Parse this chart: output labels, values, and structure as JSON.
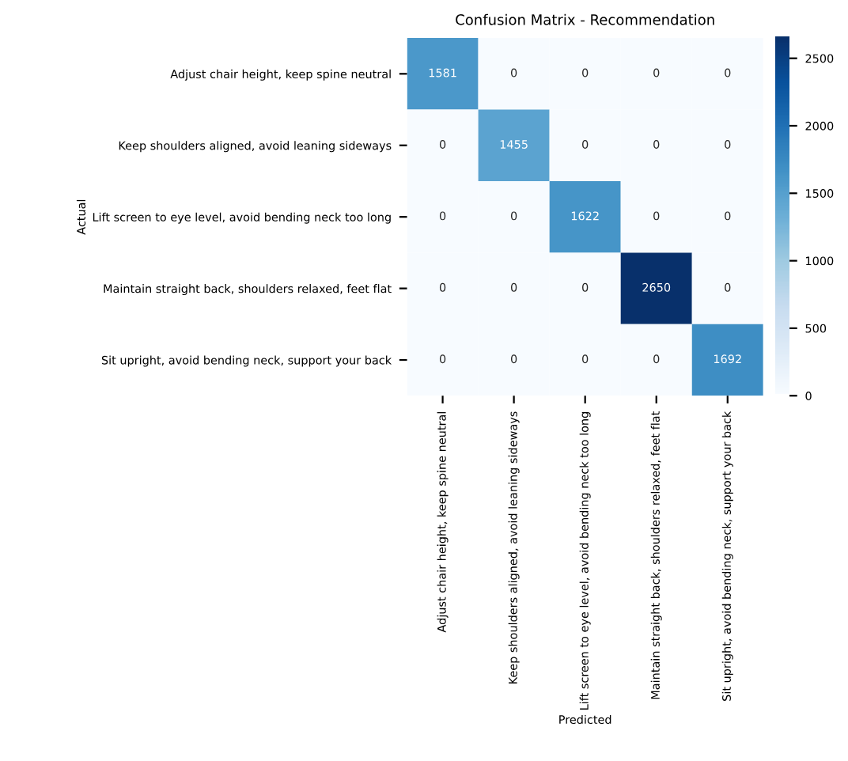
{
  "chart_data": {
    "type": "heatmap",
    "title": "Confusion Matrix - Recommendation",
    "xlabel": "Predicted",
    "ylabel": "Actual",
    "categories": [
      "Adjust chair height, keep spine neutral",
      "Keep shoulders aligned, avoid leaning sideways",
      "Lift screen to eye level, avoid bending neck too long",
      "Maintain straight back, shoulders relaxed, feet flat",
      "Sit upright, avoid bending neck, support your back"
    ],
    "y_categories": [
      "Adjust chair height, keep spine neutral",
      "Keep shoulders aligned, avoid leaning sideways",
      "Lift screen to eye level, avoid bending neck too long",
      "Maintain straight back, shoulders relaxed, feet flat",
      "Sit upright, avoid bending neck, support your back"
    ],
    "cells": [
      [
        1581,
        0,
        0,
        0,
        0
      ],
      [
        0,
        1455,
        0,
        0,
        0
      ],
      [
        0,
        0,
        1622,
        0,
        0
      ],
      [
        0,
        0,
        0,
        2650,
        0
      ],
      [
        0,
        0,
        0,
        0,
        1692
      ]
    ],
    "data_labels": true,
    "clim": [
      0,
      2650
    ],
    "cticks": [
      0,
      500,
      1000,
      1500,
      2000,
      2500
    ]
  }
}
